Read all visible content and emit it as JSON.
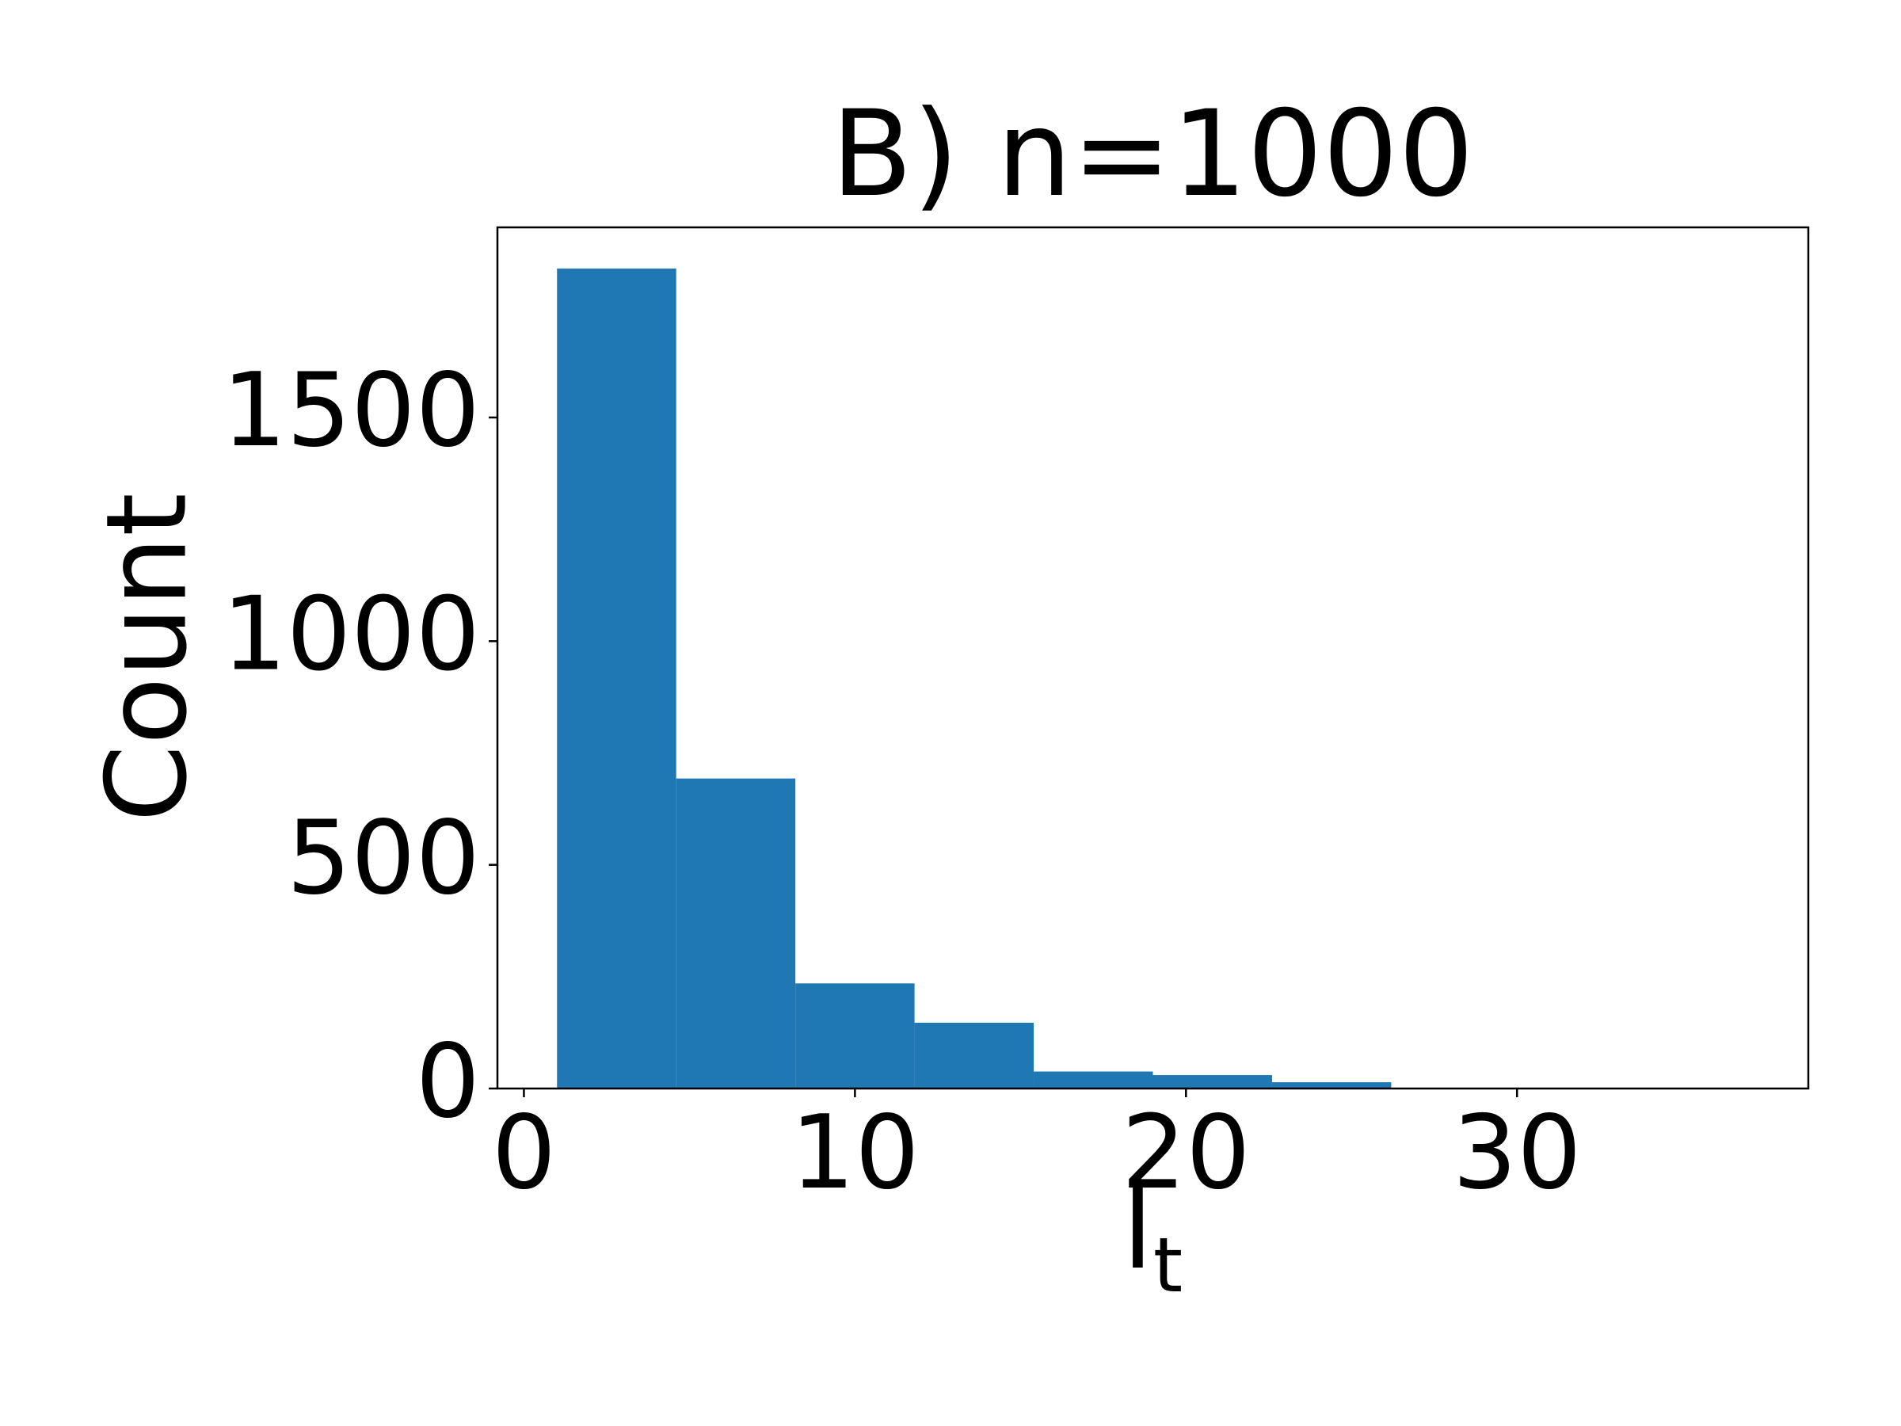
{
  "chart_data": {
    "type": "histogram",
    "title": "B) n=1000",
    "xlabel": {
      "text": "l",
      "subscript": "t"
    },
    "ylabel": "Count",
    "bins": [
      1,
      4.6,
      8.2,
      11.8,
      15.4,
      19,
      22.6,
      26.2,
      29.8,
      33.4,
      37
    ],
    "values": [
      1833,
      693,
      235,
      147,
      38,
      30,
      14,
      0,
      0,
      1
    ],
    "color": "#1f77b4",
    "xlim": [
      -0.8,
      38.8
    ],
    "xticks": [
      0,
      10,
      20,
      30
    ],
    "ylim": [
      0,
      1925
    ],
    "yticks": [
      0,
      500,
      1000,
      1500
    ],
    "grid": false
  }
}
